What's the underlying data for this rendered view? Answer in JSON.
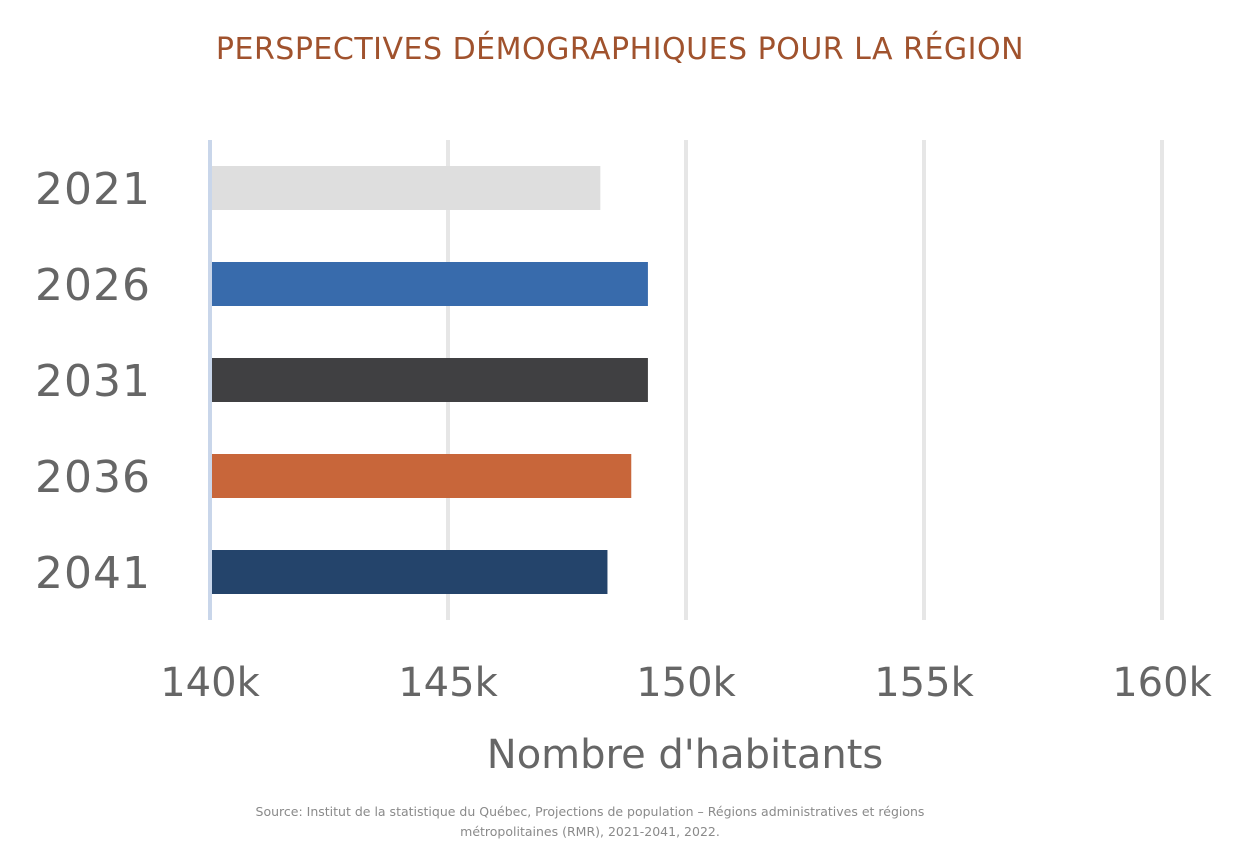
{
  "chart_data": {
    "type": "bar",
    "orientation": "horizontal",
    "title": "PERSPECTIVES DÉMOGRAPHIQUES POUR LA RÉGION",
    "xlabel": "Nombre d'habitants",
    "ylabel": "",
    "categories": [
      "2021",
      "2026",
      "2031",
      "2036",
      "2041"
    ],
    "values": [
      148200,
      149200,
      149200,
      148850,
      148350
    ],
    "xlim": [
      140000,
      160000
    ],
    "x_ticks": [
      140000,
      145000,
      150000,
      155000,
      160000
    ],
    "x_tick_labels": [
      "140k",
      "145k",
      "150k",
      "155k",
      "160k"
    ],
    "bar_colors": [
      "#dedede",
      "#386bac",
      "#404042",
      "#c8663a",
      "#24446b"
    ],
    "grid": true,
    "legend": "none"
  },
  "colors": {
    "title": "#a0522d",
    "text": "#666666",
    "grid": "#e6e6e6",
    "axis_line": "#c9d6ea"
  },
  "source_note": "Source: Institut de la statistique du Québec, Projections de population – Régions administratives et régions métropolitaines (RMR), 2021-2041, 2022."
}
